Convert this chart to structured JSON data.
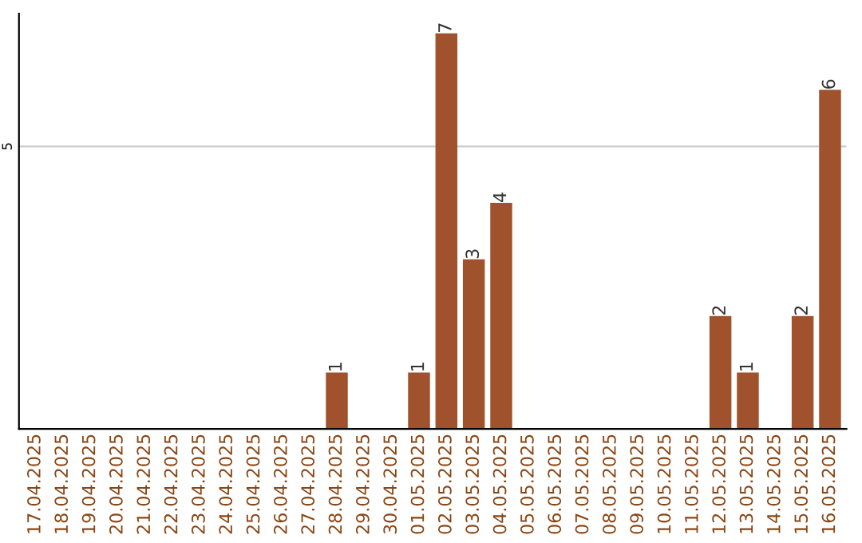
{
  "chart_data": {
    "type": "bar",
    "categories": [
      "17.04.2025",
      "18.04.2025",
      "19.04.2025",
      "20.04.2025",
      "21.04.2025",
      "22.04.2025",
      "23.04.2025",
      "24.04.2025",
      "25.04.2025",
      "26.04.2025",
      "27.04.2025",
      "28.04.2025",
      "29.04.2025",
      "30.04.2025",
      "01.05.2025",
      "02.05.2025",
      "03.05.2025",
      "04.05.2025",
      "05.05.2025",
      "06.05.2025",
      "07.05.2025",
      "08.05.2025",
      "09.05.2025",
      "10.05.2025",
      "11.05.2025",
      "12.05.2025",
      "13.05.2025",
      "14.05.2025",
      "15.05.2025",
      "16.05.2025"
    ],
    "values": [
      0,
      0,
      0,
      0,
      0,
      0,
      0,
      0,
      0,
      0,
      0,
      1,
      0,
      0,
      1,
      7,
      3,
      4,
      0,
      0,
      0,
      0,
      0,
      0,
      0,
      2,
      1,
      0,
      2,
      6
    ],
    "value_labels": [
      null,
      null,
      null,
      null,
      null,
      null,
      null,
      null,
      null,
      null,
      null,
      "1",
      null,
      null,
      "1",
      "7",
      "3",
      "4",
      null,
      null,
      null,
      null,
      null,
      null,
      null,
      "2",
      "1",
      null,
      "2",
      "6"
    ],
    "color": "#a0522d",
    "ylim": [
      0,
      7.35
    ],
    "yticks": [
      5
    ],
    "grid": "y"
  }
}
